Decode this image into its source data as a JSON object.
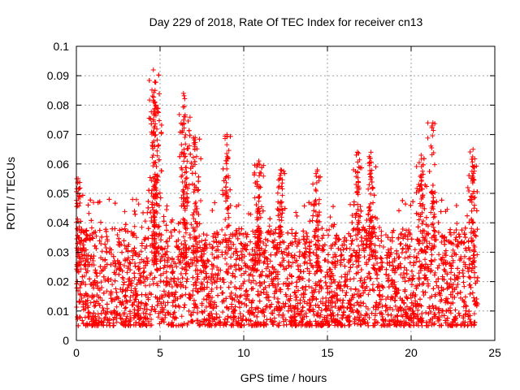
{
  "chart_data": {
    "type": "scatter",
    "title": "Day 229 of 2018, Rate Of TEC Index for receiver cn13",
    "xlabel": "GPS time / hours",
    "ylabel": "ROTI / TECUs",
    "xlim": [
      0,
      25
    ],
    "ylim": [
      0,
      0.1
    ],
    "xticks": [
      0,
      5,
      10,
      15,
      20,
      25
    ],
    "yticks": [
      0,
      0.01,
      0.02,
      0.03,
      0.04,
      0.05,
      0.06,
      0.07,
      0.08,
      0.09,
      0.1
    ],
    "xtick_labels": [
      "0",
      "5",
      "10",
      "15",
      "20",
      "25"
    ],
    "ytick_labels": [
      "0",
      "0.01",
      "0.02",
      "0.03",
      "0.04",
      "0.05",
      "0.06",
      "0.07",
      "0.08",
      "0.09",
      "0.1"
    ],
    "grid": true,
    "legend": false,
    "marker": "plus",
    "color": "#ff0000",
    "x_range_of_data": [
      0,
      24
    ],
    "typical_band": [
      0.005,
      0.035
    ],
    "notable_peaks": [
      {
        "x": 0.1,
        "y": 0.055
      },
      {
        "x": 4.6,
        "y": 0.092
      },
      {
        "x": 4.7,
        "y": 0.085
      },
      {
        "x": 4.75,
        "y": 0.08
      },
      {
        "x": 6.4,
        "y": 0.084
      },
      {
        "x": 6.5,
        "y": 0.076
      },
      {
        "x": 7.1,
        "y": 0.069
      },
      {
        "x": 9.0,
        "y": 0.07
      },
      {
        "x": 10.9,
        "y": 0.061
      },
      {
        "x": 12.2,
        "y": 0.058
      },
      {
        "x": 14.4,
        "y": 0.058
      },
      {
        "x": 16.8,
        "y": 0.064
      },
      {
        "x": 17.6,
        "y": 0.064
      },
      {
        "x": 20.6,
        "y": 0.063
      },
      {
        "x": 21.3,
        "y": 0.074
      },
      {
        "x": 23.7,
        "y": 0.065
      }
    ]
  }
}
